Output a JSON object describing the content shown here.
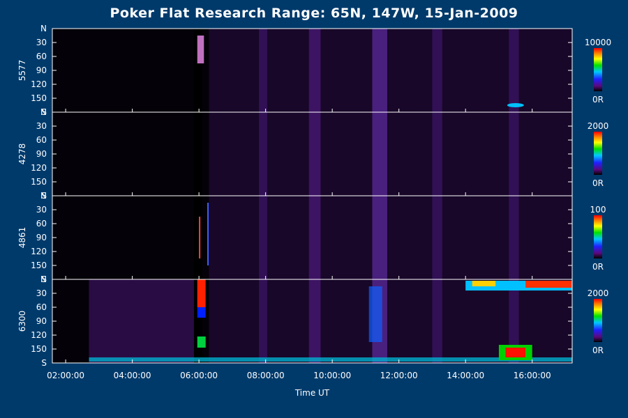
{
  "title": "Poker Flat Research Range: 65N, 147W, 15-Jan-2009",
  "chart_data": {
    "type": "heatmap",
    "title": "Poker Flat Research Range: 65N, 147W, 15-Jan-2009",
    "xlabel": "Time UT",
    "x_ticks": [
      "02:00:00",
      "04:00:00",
      "06:00:00",
      "08:00:00",
      "10:00:00",
      "12:00:00",
      "14:00:00",
      "16:00:00"
    ],
    "x_range_hours": [
      1.6,
      17.2
    ],
    "y_ticks": [
      "N",
      "30",
      "60",
      "90",
      "120",
      "150",
      "S"
    ],
    "y_range": [
      0,
      180
    ],
    "colorscale_unit_label": "0R",
    "panels": [
      {
        "name": "5577",
        "cbar_max": "10000",
        "cbar_min": "0R"
      },
      {
        "name": "4278",
        "cbar_max": "2000",
        "cbar_min": "0R"
      },
      {
        "name": "4861",
        "cbar_max": "100",
        "cbar_min": "0R"
      },
      {
        "name": "6300",
        "cbar_max": "2000",
        "cbar_min": "0R"
      }
    ]
  }
}
